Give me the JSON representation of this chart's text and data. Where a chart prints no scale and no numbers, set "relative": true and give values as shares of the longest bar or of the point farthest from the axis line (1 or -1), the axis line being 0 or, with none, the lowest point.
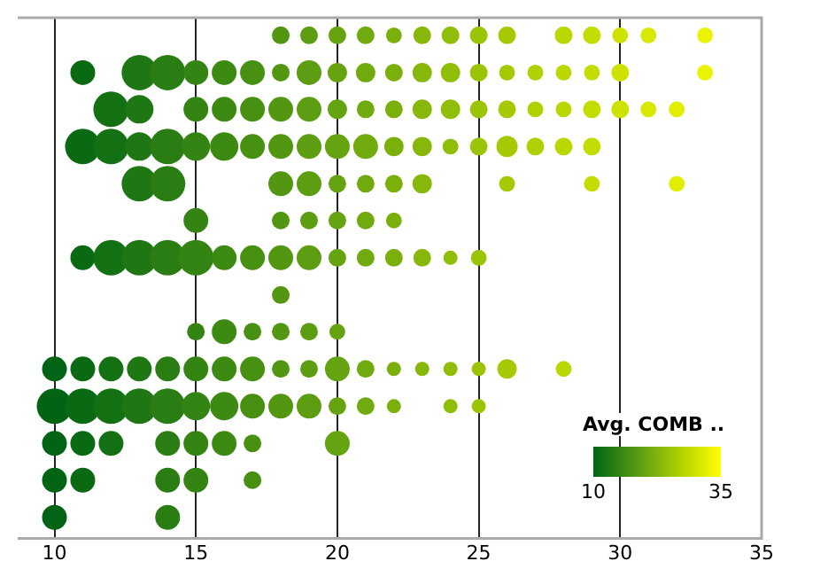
{
  "chart_data": {
    "type": "bubble",
    "relative": true,
    "xlim": [
      8.7,
      35
    ],
    "xticks": [
      10,
      15,
      20,
      25,
      30,
      35
    ],
    "grid": "x",
    "legend": false,
    "clabel": "Avg. COMB ..",
    "annotations": [
      "10",
      "35"
    ],
    "series": [
      {
        "x": [
          18,
          19,
          20,
          21,
          22,
          23,
          24,
          25,
          26,
          28,
          29,
          30,
          31,
          33,
          11,
          13,
          14,
          15,
          16,
          17,
          18,
          19,
          20,
          21,
          22,
          23,
          24,
          25,
          26,
          27,
          28,
          29,
          30,
          33,
          12,
          13,
          15,
          16,
          17,
          18,
          19,
          20,
          21,
          22,
          23,
          24,
          25,
          26,
          27,
          28,
          29,
          30,
          31,
          32,
          11,
          12,
          13,
          14,
          15,
          16,
          17,
          18,
          19,
          20,
          21,
          22,
          23,
          24,
          25,
          26,
          27,
          28,
          29,
          13,
          14,
          18,
          19,
          20,
          21,
          22,
          23,
          26,
          29,
          32,
          15,
          18,
          19,
          20,
          21,
          22,
          11,
          12,
          13,
          14,
          15,
          16,
          17,
          18,
          19,
          20,
          21,
          22,
          23,
          24,
          25,
          18,
          15,
          16,
          17,
          18,
          19,
          20,
          10,
          11,
          12,
          13,
          14,
          15,
          16,
          17,
          18,
          19,
          20,
          21,
          22,
          23,
          24,
          25,
          26,
          28,
          10,
          11,
          12,
          13,
          14,
          15,
          16,
          17,
          18,
          19,
          20,
          21,
          22,
          24,
          25,
          10,
          11,
          12,
          14,
          15,
          16,
          17,
          20,
          10,
          11,
          14,
          15,
          17,
          10,
          14
        ],
        "values": [
          1,
          1,
          1,
          1,
          1,
          1,
          1,
          1,
          1,
          1,
          1,
          1,
          1,
          1,
          0.926,
          0.926,
          0.926,
          0.926,
          0.926,
          0.926,
          0.926,
          0.926,
          0.926,
          0.926,
          0.926,
          0.926,
          0.926,
          0.926,
          0.926,
          0.926,
          0.926,
          0.926,
          0.926,
          0.926,
          0.853,
          0.853,
          0.853,
          0.853,
          0.853,
          0.853,
          0.853,
          0.853,
          0.853,
          0.853,
          0.853,
          0.853,
          0.853,
          0.853,
          0.853,
          0.853,
          0.853,
          0.853,
          0.853,
          0.853,
          0.779,
          0.779,
          0.779,
          0.779,
          0.779,
          0.779,
          0.779,
          0.779,
          0.779,
          0.779,
          0.779,
          0.779,
          0.779,
          0.779,
          0.779,
          0.779,
          0.779,
          0.779,
          0.779,
          0.705,
          0.705,
          0.705,
          0.705,
          0.705,
          0.705,
          0.705,
          0.705,
          0.705,
          0.705,
          0.705,
          0.632,
          0.632,
          0.632,
          0.632,
          0.632,
          0.632,
          0.558,
          0.558,
          0.558,
          0.558,
          0.558,
          0.558,
          0.558,
          0.558,
          0.558,
          0.558,
          0.558,
          0.558,
          0.558,
          0.558,
          0.558,
          0.484,
          0.411,
          0.411,
          0.411,
          0.411,
          0.411,
          0.411,
          0.337,
          0.337,
          0.337,
          0.337,
          0.337,
          0.337,
          0.337,
          0.337,
          0.337,
          0.337,
          0.337,
          0.337,
          0.337,
          0.337,
          0.337,
          0.337,
          0.337,
          0.337,
          0.263,
          0.263,
          0.263,
          0.263,
          0.263,
          0.263,
          0.263,
          0.263,
          0.263,
          0.263,
          0.263,
          0.263,
          0.263,
          0.263,
          0.263,
          0.189,
          0.189,
          0.189,
          0.189,
          0.189,
          0.189,
          0.189,
          0.189,
          0.116,
          0.116,
          0.116,
          0.116,
          0.116,
          0.042,
          0.042
        ],
        "sizes": [
          0.25,
          0.25,
          0.25,
          0.25,
          0.2,
          0.25,
          0.25,
          0.25,
          0.25,
          0.25,
          0.25,
          0.2,
          0.2,
          0.2,
          0.49,
          1,
          1,
          0.49,
          0.49,
          0.49,
          0.25,
          0.49,
          0.3,
          0.3,
          0.25,
          0.3,
          0.3,
          0.25,
          0.2,
          0.2,
          0.2,
          0.2,
          0.25,
          0.2,
          1,
          0.64,
          0.49,
          0.49,
          0.49,
          0.49,
          0.49,
          0.3,
          0.25,
          0.25,
          0.3,
          0.3,
          0.25,
          0.25,
          0.2,
          0.2,
          0.25,
          0.25,
          0.2,
          0.2,
          1,
          1,
          0.64,
          1,
          0.64,
          0.64,
          0.49,
          0.49,
          0.49,
          0.49,
          0.49,
          0.3,
          0.3,
          0.2,
          0.25,
          0.36,
          0.25,
          0.25,
          0.25,
          1,
          1,
          0.49,
          0.49,
          0.25,
          0.25,
          0.25,
          0.3,
          0.2,
          0.2,
          0.2,
          0.49,
          0.25,
          0.25,
          0.25,
          0.25,
          0.2,
          0.49,
          1,
          1,
          1,
          1,
          0.49,
          0.49,
          0.49,
          0.49,
          0.25,
          0.25,
          0.25,
          0.25,
          0.16,
          0.2,
          0.25,
          0.25,
          0.49,
          0.25,
          0.25,
          0.25,
          0.2,
          0.49,
          0.49,
          0.49,
          0.49,
          0.49,
          0.49,
          0.49,
          0.49,
          0.25,
          0.25,
          0.49,
          0.25,
          0.16,
          0.16,
          0.16,
          0.16,
          0.3,
          0.2,
          1,
          1,
          1,
          1,
          1,
          0.64,
          0.64,
          0.49,
          0.49,
          0.49,
          0.25,
          0.25,
          0.16,
          0.16,
          0.16,
          0.49,
          0.49,
          0.49,
          0.49,
          0.49,
          0.49,
          0.25,
          0.49,
          0.49,
          0.49,
          0.49,
          0.49,
          0.25,
          0.49,
          0.49
        ],
        "colors": [
          "#529612",
          "#5c9d11",
          "#66a311",
          "#71aa0f",
          "#7bb00c",
          "#86b70a",
          "#90bd08",
          "#9bc406",
          "#a5ca03",
          "#bad700",
          "#c4dd00",
          "#cee200",
          "#d8e800",
          "#ebf400",
          "#0a6a14",
          "#1f7713",
          "#297d13",
          "#338413",
          "#3d8a12",
          "#479012",
          "#529612",
          "#5c9d11",
          "#66a311",
          "#71aa0f",
          "#7bb00c",
          "#86b70a",
          "#90bd08",
          "#9bc406",
          "#a5ca03",
          "#b0d101",
          "#bad700",
          "#c4dd00",
          "#cee200",
          "#ebf400",
          "#147113",
          "#1f7713",
          "#338413",
          "#3d8a12",
          "#479012",
          "#529612",
          "#5c9d11",
          "#66a311",
          "#71aa0f",
          "#7bb00c",
          "#86b70a",
          "#90bd08",
          "#9bc406",
          "#a5ca03",
          "#b0d101",
          "#bad700",
          "#c4dd00",
          "#cee200",
          "#d8e800",
          "#e1ee00",
          "#0a6a14",
          "#147113",
          "#1f7713",
          "#297d13",
          "#338413",
          "#3d8a12",
          "#479012",
          "#529612",
          "#5c9d11",
          "#66a311",
          "#71aa0f",
          "#7bb00c",
          "#86b70a",
          "#90bd08",
          "#9bc406",
          "#a5ca03",
          "#b0d101",
          "#bad700",
          "#c4dd00",
          "#1f7713",
          "#297d13",
          "#529612",
          "#5c9d11",
          "#66a311",
          "#71aa0f",
          "#7bb00c",
          "#86b70a",
          "#a5ca03",
          "#c4dd00",
          "#e1ee00",
          "#338413",
          "#529612",
          "#5c9d11",
          "#66a311",
          "#71aa0f",
          "#7bb00c",
          "#0a6a14",
          "#147113",
          "#1f7713",
          "#297d13",
          "#338413",
          "#3d8a12",
          "#479012",
          "#529612",
          "#5c9d11",
          "#66a311",
          "#71aa0f",
          "#7bb00c",
          "#86b70a",
          "#90bd08",
          "#9bc406",
          "#529612",
          "#338413",
          "#3d8a12",
          "#479012",
          "#529612",
          "#5c9d11",
          "#66a311",
          "#006414",
          "#0a6a14",
          "#147113",
          "#1f7713",
          "#297d13",
          "#338413",
          "#3d8a12",
          "#479012",
          "#529612",
          "#5c9d11",
          "#66a311",
          "#71aa0f",
          "#7bb00c",
          "#86b70a",
          "#90bd08",
          "#9bc406",
          "#a5ca03",
          "#bad700",
          "#006414",
          "#0a6a14",
          "#147113",
          "#1f7713",
          "#297d13",
          "#338413",
          "#3d8a12",
          "#479012",
          "#529612",
          "#5c9d11",
          "#66a311",
          "#71aa0f",
          "#7bb00c",
          "#90bd08",
          "#9bc406",
          "#006414",
          "#0a6a14",
          "#147113",
          "#297d13",
          "#338413",
          "#3d8a12",
          "#479012",
          "#66a311",
          "#006414",
          "#0a6a14",
          "#297d13",
          "#338413",
          "#479012",
          "#006414",
          "#297d13"
        ]
      }
    ]
  }
}
